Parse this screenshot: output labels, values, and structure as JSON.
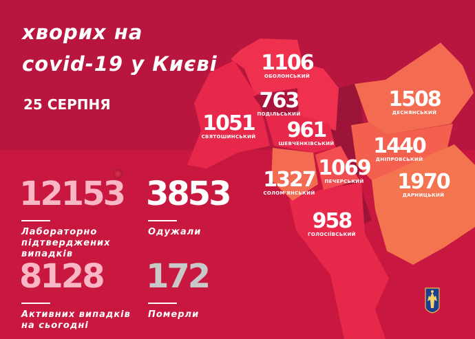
{
  "title": {
    "line1": "хворих на",
    "line2": "covid-19 у Києві"
  },
  "date": "25 СЕРПНЯ",
  "stats": {
    "confirmed": {
      "value": "12153",
      "label_lines": [
        "Лабораторно",
        "підтверджених",
        "випадків"
      ],
      "color": "#f9b6c4"
    },
    "recovered": {
      "value": "3853",
      "label_lines": [
        "Одужали"
      ],
      "color": "#ffffff"
    },
    "active": {
      "value": "8128",
      "label_lines": [
        "Активних випадків",
        "на сьогодні"
      ],
      "color": "#f9b6c4"
    },
    "deaths": {
      "value": "172",
      "label_lines": [
        "Померли"
      ],
      "color": "#c8c8c8"
    }
  },
  "districts": [
    {
      "name": "ОБОЛОНСЬКИЙ",
      "value": "1106"
    },
    {
      "name": "ПОДІЛЬСЬКИЙ",
      "value": "763"
    },
    {
      "name": "СВЯТОШИНСЬКИЙ",
      "value": "1051"
    },
    {
      "name": "ШЕВЧЕНКІВСЬКИЙ",
      "value": "961"
    },
    {
      "name": "СОЛОМ'ЯНСЬКИЙ",
      "value": "1327"
    },
    {
      "name": "ПЕЧЕРСЬКИЙ",
      "value": "1069"
    },
    {
      "name": "ГОЛОСІЇВСЬКИЙ",
      "value": "958"
    },
    {
      "name": "ДЕСНЯНСЬКИЙ",
      "value": "1508"
    },
    {
      "name": "ДНІПРОВСЬКИЙ",
      "value": "1440"
    },
    {
      "name": "ДАРНИЦЬКИЙ",
      "value": "1970"
    }
  ],
  "colors": {
    "background": "#b8163f",
    "panel": "#c8183f",
    "right_bank": "#ee2f4d",
    "left_bank": "#f36b50",
    "podilskyi": "#a8143a",
    "river": "#9c1437"
  }
}
